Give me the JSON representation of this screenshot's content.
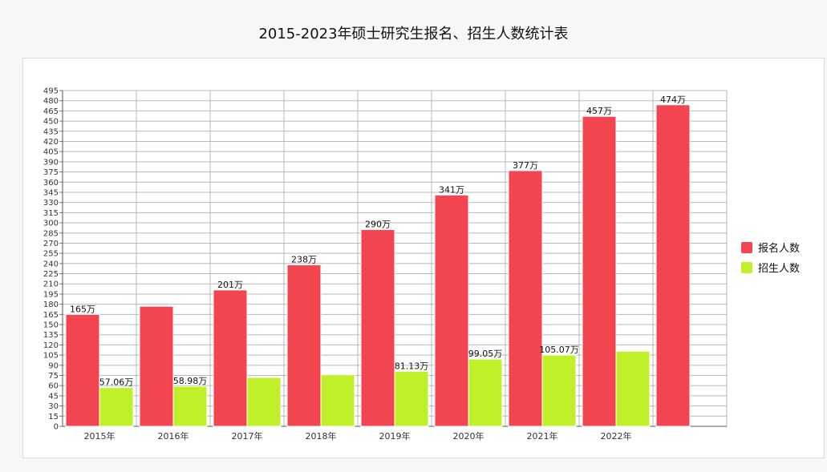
{
  "chart_data": {
    "type": "bar",
    "title": "2015-2023年硕士研究生报名、招生人数统计表",
    "categories": [
      "2015年",
      "2016年",
      "2017年",
      "2018年",
      "2019年",
      "2020年",
      "2021年",
      "2022年",
      ""
    ],
    "series": [
      {
        "name": "报名人数",
        "color": "#f2454f",
        "values": [
          165,
          177,
          201,
          238,
          290,
          341,
          377,
          457,
          474
        ],
        "labels": [
          "165万",
          "",
          "201万",
          "238万",
          "290万",
          "341万",
          "377万",
          "457万",
          "474万"
        ]
      },
      {
        "name": "招生人数",
        "color": "#bff02a",
        "values": [
          57.06,
          58.98,
          72,
          76,
          81.13,
          99.05,
          105.07,
          110.7,
          null
        ],
        "labels": [
          "57.06万",
          "58.98万",
          "",
          "",
          "81.13万",
          "99.05万",
          "105.07万",
          "",
          ""
        ]
      }
    ],
    "ylim": [
      0,
      495
    ],
    "ytick_step": 15,
    "grid": true,
    "legend": "right"
  }
}
